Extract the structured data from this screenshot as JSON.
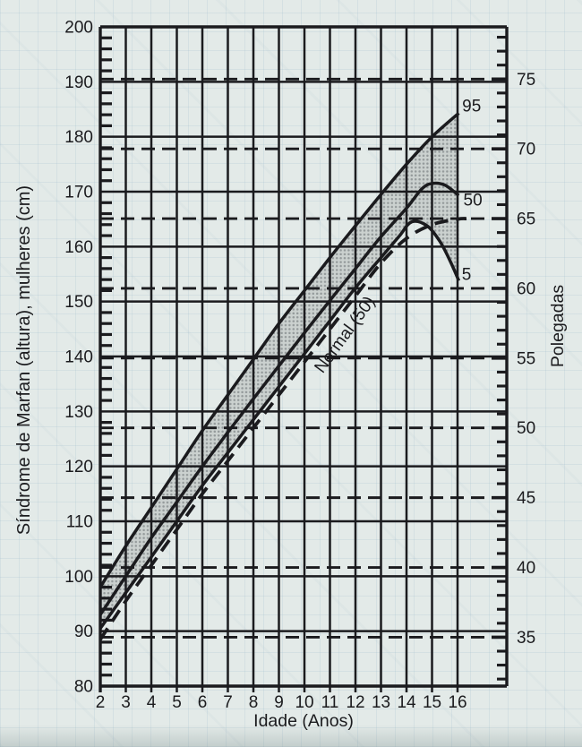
{
  "chart_data": {
    "type": "line",
    "title": "",
    "xlabel": "Idade (Anos)",
    "ylabel": "Síndrome de Marfan (altura), mulheres (cm)",
    "ylabel_right": "Polegadas",
    "xlim": [
      2,
      16
    ],
    "ylim": [
      80,
      200
    ],
    "x_ticks": [
      2,
      3,
      4,
      5,
      6,
      7,
      8,
      9,
      10,
      11,
      12,
      13,
      14,
      15,
      16
    ],
    "y_ticks": [
      80,
      90,
      100,
      110,
      120,
      130,
      140,
      150,
      160,
      170,
      180,
      190,
      200
    ],
    "y_minor_step_cm": 2,
    "grid": true,
    "legend_position": "on-curve-labels",
    "right_axis": {
      "unit": "inches",
      "cm_per_inch": 2.54,
      "labeled_ticks": [
        35,
        40,
        45,
        50,
        55,
        60,
        65,
        70,
        75
      ],
      "minor_tick_step": 1,
      "tick_range": [
        32,
        78
      ],
      "dashed_reference_lines_at": [
        35,
        40,
        45,
        50,
        55,
        60,
        65,
        70,
        75
      ]
    },
    "series": [
      {
        "name": "p95",
        "label": "95",
        "line_style": "solid",
        "points": [
          [
            2,
            98
          ],
          [
            3,
            105.5
          ],
          [
            4,
            112.5
          ],
          [
            5,
            119.5
          ],
          [
            6,
            126.5
          ],
          [
            7,
            133
          ],
          [
            8,
            139.5
          ],
          [
            9,
            146
          ],
          [
            10,
            152
          ],
          [
            11,
            158
          ],
          [
            12,
            163.8
          ],
          [
            13,
            169.5
          ],
          [
            14,
            175
          ],
          [
            15,
            180
          ],
          [
            16.05,
            184.3
          ]
        ]
      },
      {
        "name": "p50",
        "label": "50",
        "line_style": "solid",
        "points": [
          [
            2,
            93
          ],
          [
            3,
            100
          ],
          [
            4,
            107
          ],
          [
            5,
            113.5
          ],
          [
            6,
            120
          ],
          [
            7,
            126.2
          ],
          [
            8,
            132.3
          ],
          [
            9,
            138.3
          ],
          [
            10,
            144.3
          ],
          [
            11,
            150.2
          ],
          [
            12,
            156
          ],
          [
            13,
            161.8
          ],
          [
            14,
            167
          ],
          [
            14.6,
            170.5
          ],
          [
            15,
            171.5
          ],
          [
            15.5,
            171.2
          ],
          [
            16.05,
            169.3
          ]
        ]
      },
      {
        "name": "p5",
        "label": "5",
        "line_style": "solid",
        "points": [
          [
            2,
            90.5
          ],
          [
            3,
            97
          ],
          [
            4,
            103.5
          ],
          [
            5,
            110
          ],
          [
            6,
            116.5
          ],
          [
            7,
            122.5
          ],
          [
            8,
            128.5
          ],
          [
            9,
            134.5
          ],
          [
            10,
            140.5
          ],
          [
            11,
            146.5
          ],
          [
            12,
            152.5
          ],
          [
            13,
            158
          ],
          [
            13.7,
            161.8
          ],
          [
            14.2,
            164.5
          ],
          [
            14.8,
            163.8
          ],
          [
            15.3,
            161
          ],
          [
            15.7,
            157.5
          ],
          [
            16.05,
            153.8
          ]
        ]
      },
      {
        "name": "normal50",
        "label": "Normal (50)",
        "line_style": "dashed",
        "points": [
          [
            2,
            88.5
          ],
          [
            3,
            95.5
          ],
          [
            4,
            102
          ],
          [
            5,
            108.5
          ],
          [
            6,
            115
          ],
          [
            7,
            121
          ],
          [
            8,
            127
          ],
          [
            9,
            133
          ],
          [
            10,
            139
          ],
          [
            11,
            145
          ],
          [
            12,
            151
          ],
          [
            13,
            157
          ],
          [
            14,
            161.5
          ],
          [
            15,
            164
          ],
          [
            16,
            165
          ],
          [
            16.35,
            165.1
          ]
        ]
      }
    ],
    "band": {
      "upper": "p95",
      "lower": "p5",
      "style": "halftone-grey"
    },
    "annotations": [
      {
        "text": "95",
        "age": 16.55,
        "cm": 184.6,
        "rotate": 0
      },
      {
        "text": "50",
        "age": 16.6,
        "cm": 167.5,
        "rotate": 0
      },
      {
        "text": "5",
        "age": 16.35,
        "cm": 153.9,
        "rotate": 0
      },
      {
        "text": "Normal (50)",
        "age": 11.75,
        "cm": 143.4,
        "rotate": -54
      }
    ],
    "colors": {
      "ink": "#1b1b1e",
      "paper": "#e3eae8",
      "band_dot": "#8d9394",
      "band_base": "#c9cfcd"
    }
  }
}
